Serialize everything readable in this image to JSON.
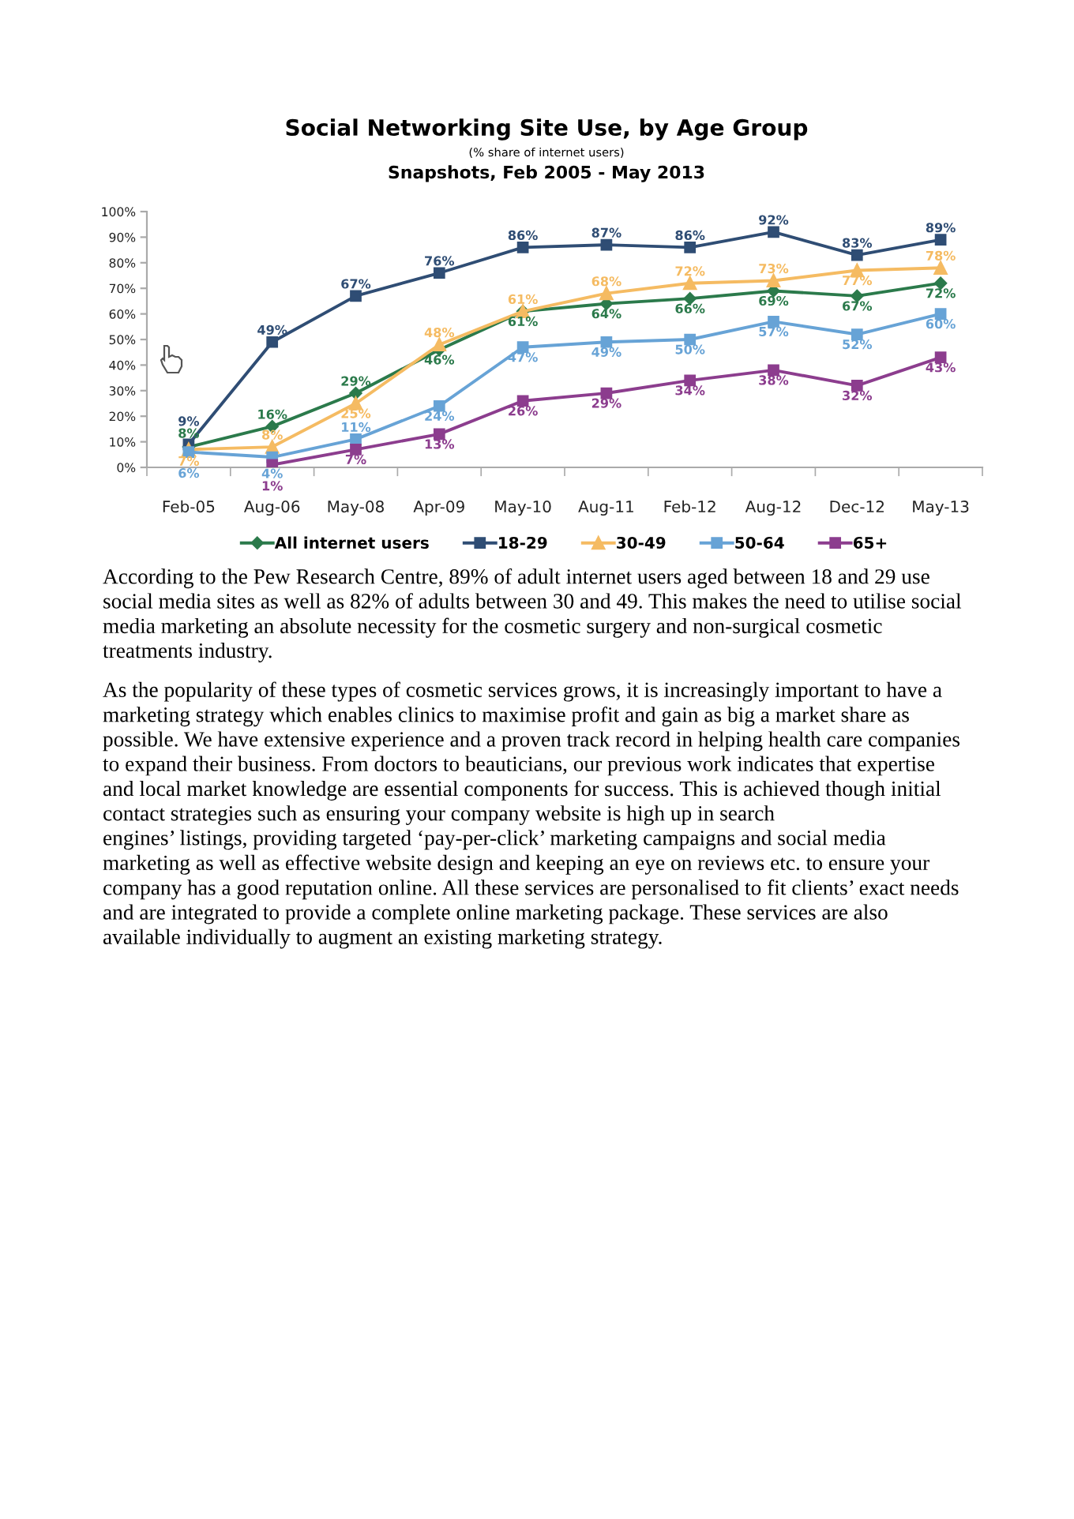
{
  "chart_data": {
    "type": "line",
    "title": "Social Networking Site Use, by Age Group",
    "subtitle": "(% share of internet users)",
    "annotations": [
      "Snapshots, Feb 2005 - May 2013",
      "According to the Pew Research Centre, 89% of adult internet users aged between 18 and 29 use\nsocial media sites as well as 82% of adults between 30 and 49. This makes the need to utilise social\nmedia marketing an absolute necessity for the cosmetic surgery and non-surgical cosmetic\ntreatments industry.",
      "As the popularity of these types of cosmetic services grows, it is increasingly important to have a\nmarketing strategy which enables clinics to maximise profit and gain as big a market share as\npossible. We have extensive experience and a proven track record in helping health care companies\nto expand their business. From doctors to beauticians, our previous work indicates that expertise\nand local market knowledge are essential components for success. This is achieved though initial\ncontact strategies such as ensuring your company website is high up in search\nengines’ listings, providing targeted ‘pay-per-click’ marketing campaigns and social media\nmarketing as well as effective website design and keeping an eye on reviews etc. to ensure your\ncompany has a good reputation online. All these services are personalised to fit clients’ exact needs\nand are integrated to provide a complete online marketing package. These services are also\navailable individually to augment an existing marketing strategy."
    ],
    "categories": [
      "Feb-05",
      "Aug-06",
      "May-08",
      "Apr-09",
      "May-10",
      "Aug-11",
      "Feb-12",
      "Aug-12",
      "Dec-12",
      "May-13"
    ],
    "ylim": [
      0,
      100
    ],
    "yticks": [
      {
        "value": 0,
        "label": "0%"
      },
      {
        "value": 10,
        "label": "10%"
      },
      {
        "value": 20,
        "label": "20%"
      },
      {
        "value": 30,
        "label": "30%"
      },
      {
        "value": 40,
        "label": "40%"
      },
      {
        "value": 50,
        "label": "50%"
      },
      {
        "value": 60,
        "label": "60%"
      },
      {
        "value": 70,
        "label": "70%"
      },
      {
        "value": 80,
        "label": "80%"
      },
      {
        "value": 90,
        "label": "90%"
      },
      {
        "value": 100,
        "label": "100%"
      }
    ],
    "legend": "bottom",
    "series": [
      {
        "name": "All internet users",
        "color": "#2b7a4b",
        "marker": "diamond",
        "values": [
          8,
          16,
          29,
          46,
          61,
          64,
          66,
          69,
          67,
          72
        ],
        "value_labels": [
          "8%",
          "16%",
          "29%",
          "46%",
          "61%",
          "64%",
          "66%",
          "69%",
          "67%",
          "72%"
        ]
      },
      {
        "name": "18-29",
        "color": "#2f4d74",
        "marker": "square",
        "values": [
          9,
          49,
          67,
          76,
          86,
          87,
          86,
          92,
          83,
          89
        ],
        "value_labels": [
          "9%",
          "49%",
          "67%",
          "76%",
          "86%",
          "87%",
          "86%",
          "92%",
          "83%",
          "89%"
        ]
      },
      {
        "name": "30-49",
        "color": "#f5bb62",
        "marker": "triangle",
        "values": [
          7,
          8,
          25,
          48,
          61,
          68,
          72,
          73,
          77,
          78
        ],
        "value_labels": [
          "7%",
          "8%",
          "25%",
          "48%",
          "61%",
          "68%",
          "72%",
          "73%",
          "77%",
          "78%"
        ]
      },
      {
        "name": "50-64",
        "color": "#67a3d6",
        "marker": "square",
        "values": [
          6,
          4,
          11,
          24,
          47,
          49,
          50,
          57,
          52,
          60
        ],
        "value_labels": [
          "6%",
          "4%",
          "11%",
          "24%",
          "47%",
          "49%",
          "50%",
          "57%",
          "52%",
          "60%"
        ]
      },
      {
        "name": "65+",
        "color": "#8c3d8e",
        "marker": "square",
        "values": [
          null,
          1,
          7,
          13,
          26,
          29,
          34,
          38,
          32,
          43
        ],
        "value_labels": [
          null,
          "1%",
          "7%",
          "13%",
          "26%",
          "29%",
          "34%",
          "38%",
          "32%",
          "43%"
        ]
      }
    ]
  }
}
